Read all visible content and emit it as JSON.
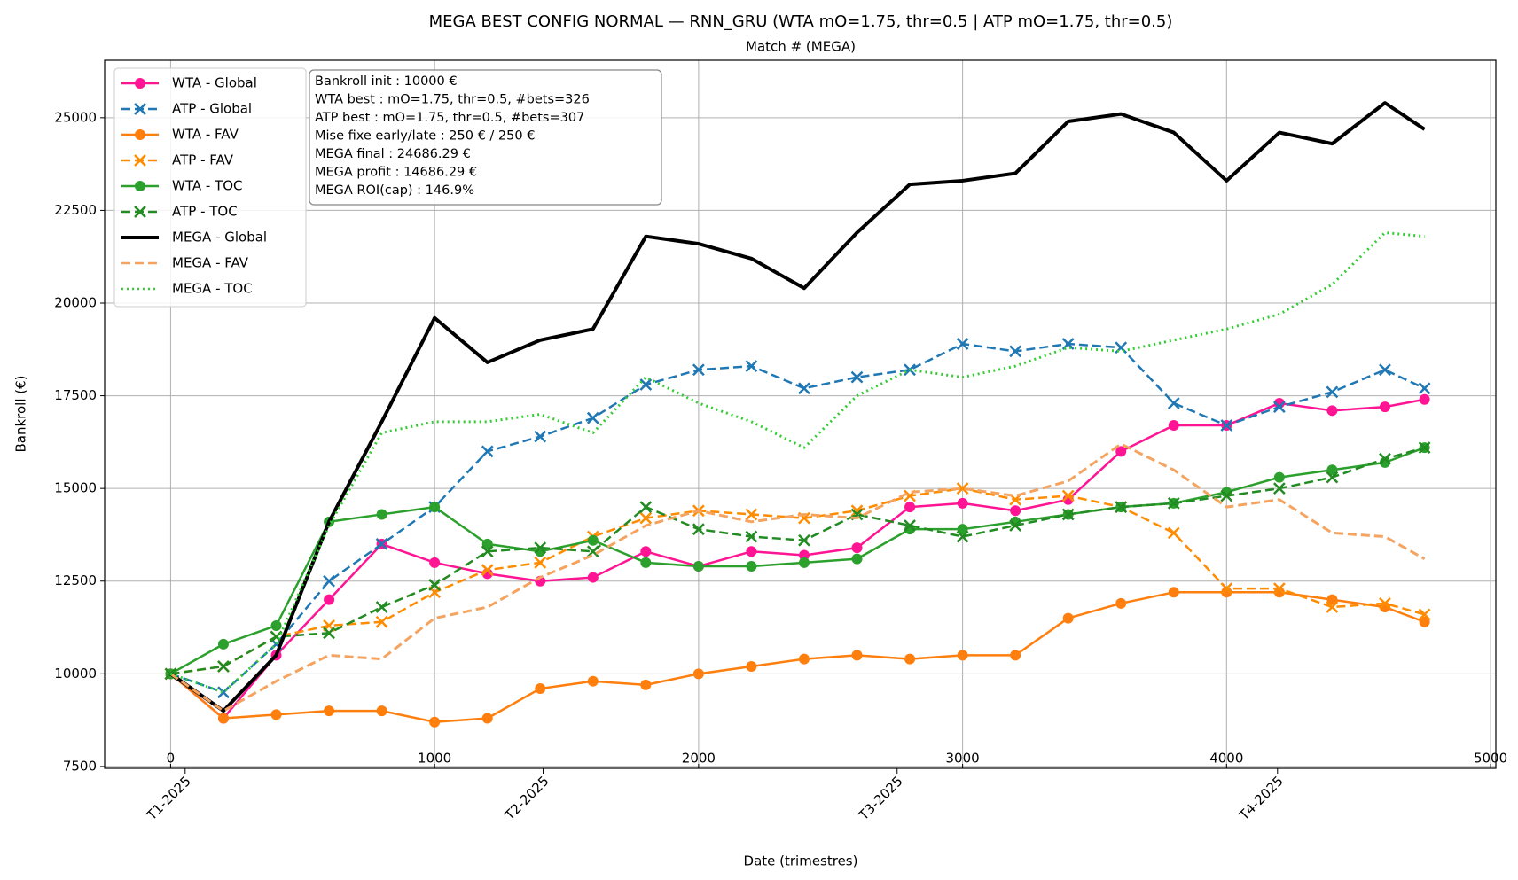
{
  "chart_data": {
    "type": "line",
    "title": "MEGA BEST CONFIG NORMAL — RNN_GRU (WTA mO=1.75, thr=0.5 | ATP mO=1.75, thr=0.5)",
    "top_axis_label": "Match # (MEGA)",
    "x_label": "Date (trimestres)",
    "y_label": "Bankroll (€)",
    "x": [
      0,
      200,
      400,
      600,
      800,
      1000,
      1200,
      1400,
      1600,
      1800,
      2000,
      2200,
      2400,
      2600,
      2800,
      3000,
      3200,
      3400,
      3600,
      3800,
      4000,
      4200,
      4400,
      4600,
      4750
    ],
    "xlim": [
      -250,
      5020
    ],
    "xticks": [
      0,
      1000,
      2000,
      3000,
      4000,
      5000
    ],
    "date_ticks": [
      {
        "value": 55,
        "label": "T1-2025"
      },
      {
        "value": 1411,
        "label": "T2-2025"
      },
      {
        "value": 2752,
        "label": "T3-2025"
      },
      {
        "value": 4193,
        "label": "T4-2025"
      }
    ],
    "ylim": [
      7450,
      26550
    ],
    "yticks": [
      7500,
      10000,
      12500,
      15000,
      17500,
      20000,
      22500,
      25000
    ],
    "grid": true,
    "legend": "upper left",
    "info_box": [
      "Bankroll init : 10000 €",
      "WTA best : mO=1.75, thr=0.5, #bets=326",
      "ATP best : mO=1.75, thr=0.5, #bets=307",
      "Mise fixe early/late : 250 € / 250 €",
      "MEGA final : 24686.29 €",
      "MEGA profit : 14686.29 €",
      "MEGA ROI(cap) : 146.9%"
    ],
    "series": [
      {
        "name": "WTA - Global",
        "color": "#ff1493",
        "linestyle": "solid",
        "marker": "o",
        "values": [
          10000,
          8800,
          10500,
          12000,
          13500,
          13000,
          12700,
          12500,
          12600,
          13300,
          12900,
          13300,
          13200,
          13400,
          14500,
          14600,
          14400,
          14700,
          16000,
          16700,
          16700,
          17300,
          17100,
          17200,
          17400
        ]
      },
      {
        "name": "ATP - Global",
        "color": "#1f77b4",
        "linestyle": "dashed",
        "marker": "x",
        "values": [
          10000,
          9500,
          10800,
          12500,
          13500,
          14500,
          16000,
          16400,
          16900,
          17800,
          18200,
          18300,
          17700,
          18000,
          18200,
          18900,
          18700,
          18900,
          18800,
          17300,
          16700,
          17200,
          17600,
          18200,
          17700
        ]
      },
      {
        "name": "WTA - FAV",
        "color": "#ff7f0e",
        "linestyle": "solid",
        "marker": "o",
        "values": [
          10000,
          8800,
          8900,
          9000,
          9000,
          8700,
          8800,
          9600,
          9800,
          9700,
          10000,
          10200,
          10400,
          10500,
          10400,
          10500,
          10500,
          11500,
          11900,
          12200,
          12200,
          12200,
          12000,
          11800,
          11400
        ]
      },
      {
        "name": "ATP - FAV",
        "color": "#ff8c00",
        "linestyle": "dashed",
        "marker": "x",
        "values": [
          10000,
          10200,
          11000,
          11300,
          11400,
          12200,
          12800,
          13000,
          13700,
          14200,
          14400,
          14300,
          14200,
          14400,
          14800,
          15000,
          14700,
          14800,
          14500,
          13800,
          12300,
          12300,
          11800,
          11900,
          11600
        ]
      },
      {
        "name": "WTA - TOC",
        "color": "#2ca02c",
        "linestyle": "solid",
        "marker": "o",
        "values": [
          10000,
          10800,
          11300,
          14100,
          14300,
          14500,
          13500,
          13300,
          13600,
          13000,
          12900,
          12900,
          13000,
          13100,
          13900,
          13900,
          14100,
          14300,
          14500,
          14600,
          14900,
          15300,
          15500,
          15700,
          16100
        ]
      },
      {
        "name": "ATP - TOC",
        "color": "#228b22",
        "linestyle": "dashed",
        "marker": "x",
        "values": [
          10000,
          10200,
          11000,
          11100,
          11800,
          12400,
          13300,
          13400,
          13300,
          14500,
          13900,
          13700,
          13600,
          14300,
          14000,
          13700,
          14000,
          14300,
          14500,
          14600,
          14800,
          15000,
          15300,
          15800,
          16100
        ]
      },
      {
        "name": "MEGA - Global",
        "color": "#000000",
        "linestyle": "solid",
        "marker": null,
        "values": [
          10000,
          9000,
          10500,
          14100,
          16800,
          19600,
          18400,
          19000,
          19300,
          21800,
          21600,
          21200,
          20400,
          21900,
          23200,
          23300,
          23500,
          24900,
          25100,
          24600,
          23300,
          24600,
          24300,
          25400,
          24686.29
        ]
      },
      {
        "name": "MEGA - FAV",
        "color": "#f4a460",
        "linestyle": "dashed",
        "marker": null,
        "values": [
          10000,
          9000,
          9800,
          10500,
          10400,
          11500,
          11800,
          12600,
          13200,
          14000,
          14400,
          14100,
          14300,
          14200,
          14900,
          15000,
          14800,
          15200,
          16200,
          15500,
          14500,
          14700,
          13800,
          13700,
          13100
        ]
      },
      {
        "name": "MEGA - TOC",
        "color": "#32cd32",
        "linestyle": "dotted",
        "marker": null,
        "values": [
          10000,
          9500,
          10800,
          14000,
          16500,
          16800,
          16800,
          17000,
          16500,
          18000,
          17300,
          16800,
          16100,
          17500,
          18200,
          18000,
          18300,
          18800,
          18700,
          19000,
          19300,
          19700,
          20500,
          21900,
          21800
        ]
      }
    ]
  }
}
